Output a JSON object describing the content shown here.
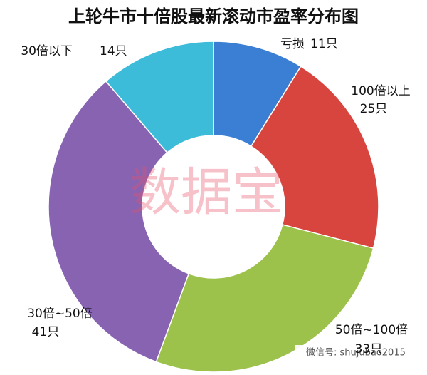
{
  "chart_data": {
    "type": "donut",
    "title": "上轮牛市十倍股最新滚动市盈率分布图",
    "categories": [
      "亏损",
      "100倍以上",
      "50倍~100倍",
      "30倍~50倍",
      "30倍以下"
    ],
    "values": [
      11,
      25,
      33,
      41,
      14
    ],
    "value_labels": [
      "11只",
      "25只",
      "33只",
      "41只",
      "14只"
    ],
    "colors": [
      "#3b7fd4",
      "#d8453f",
      "#9cc24c",
      "#8763b2",
      "#3dbcd9"
    ],
    "watermark": "数据宝",
    "footer": "微信号: shujubao2015"
  }
}
